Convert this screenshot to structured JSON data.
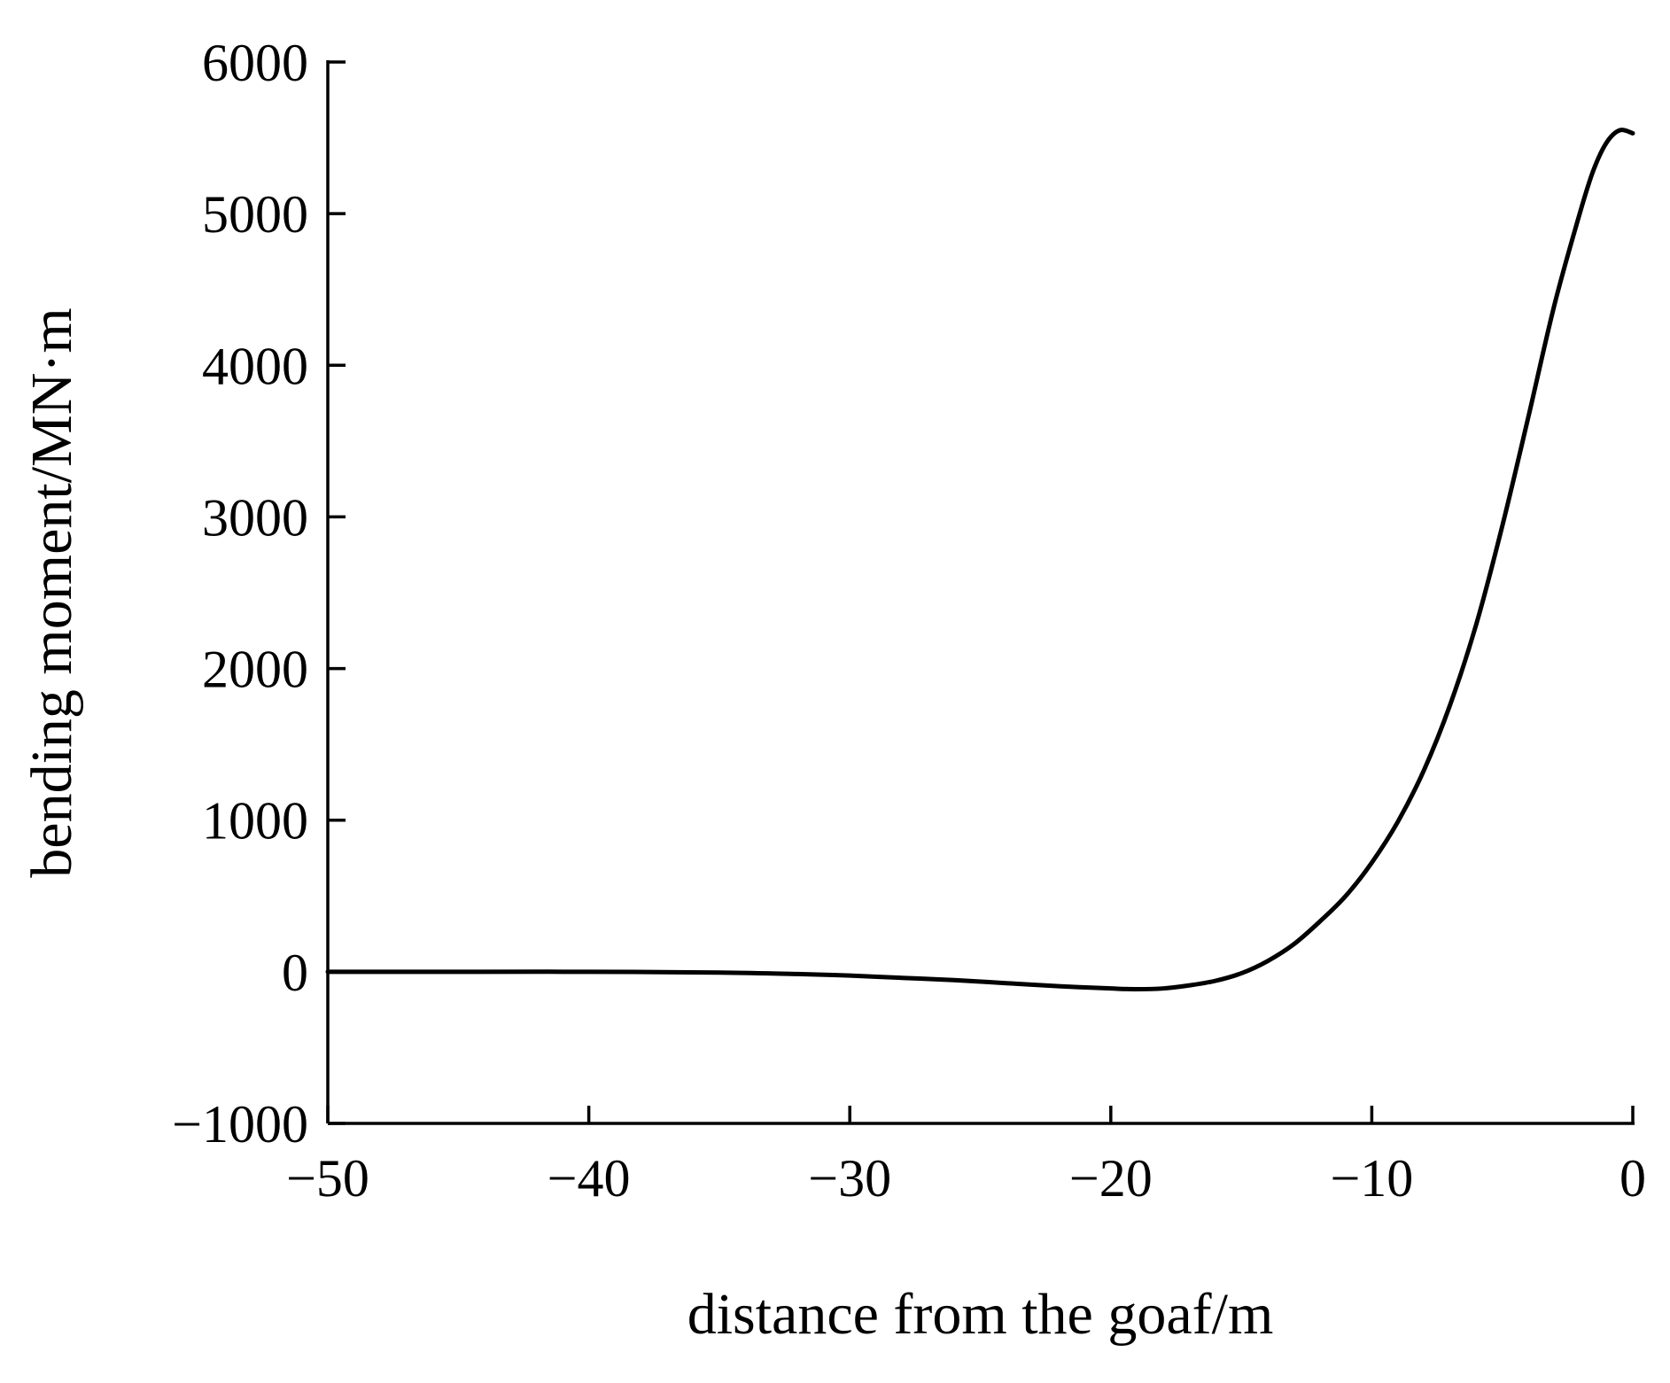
{
  "chart_data": {
    "type": "line",
    "title": "",
    "xlabel": "distance from the goaf/m",
    "ylabel": "bending moment/MN·m",
    "xlim": [
      -50,
      0
    ],
    "ylim": [
      -1000,
      6000
    ],
    "xticks": [
      -50,
      -40,
      -30,
      -20,
      -10,
      0
    ],
    "yticks": [
      -1000,
      0,
      1000,
      2000,
      3000,
      4000,
      5000,
      6000
    ],
    "xtick_labels": [
      "−50",
      "−40",
      "−30",
      "−20",
      "−10",
      "0"
    ],
    "ytick_labels": [
      "−1000",
      "0",
      "1000",
      "2000",
      "3000",
      "4000",
      "5000",
      "6000"
    ],
    "grid": false,
    "line_color": "#000000",
    "series": [
      {
        "x": [
          -50,
          -45,
          -40,
          -35,
          -32,
          -30,
          -28,
          -26,
          -24,
          -22,
          -20,
          -19,
          -18,
          -17,
          -16,
          -15,
          -14,
          -13,
          -12,
          -11,
          -10,
          -9,
          -8,
          -7,
          -6,
          -5,
          -4,
          -3,
          -2,
          -1.5,
          -1,
          -0.5,
          0
        ],
        "y": [
          0,
          0,
          0,
          -5,
          -15,
          -25,
          -40,
          -55,
          -75,
          -95,
          -110,
          -115,
          -110,
          -90,
          -60,
          -10,
          70,
          180,
          330,
          500,
          720,
          990,
          1330,
          1760,
          2290,
          2940,
          3660,
          4400,
          5020,
          5290,
          5470,
          5550,
          5530
        ]
      }
    ]
  }
}
